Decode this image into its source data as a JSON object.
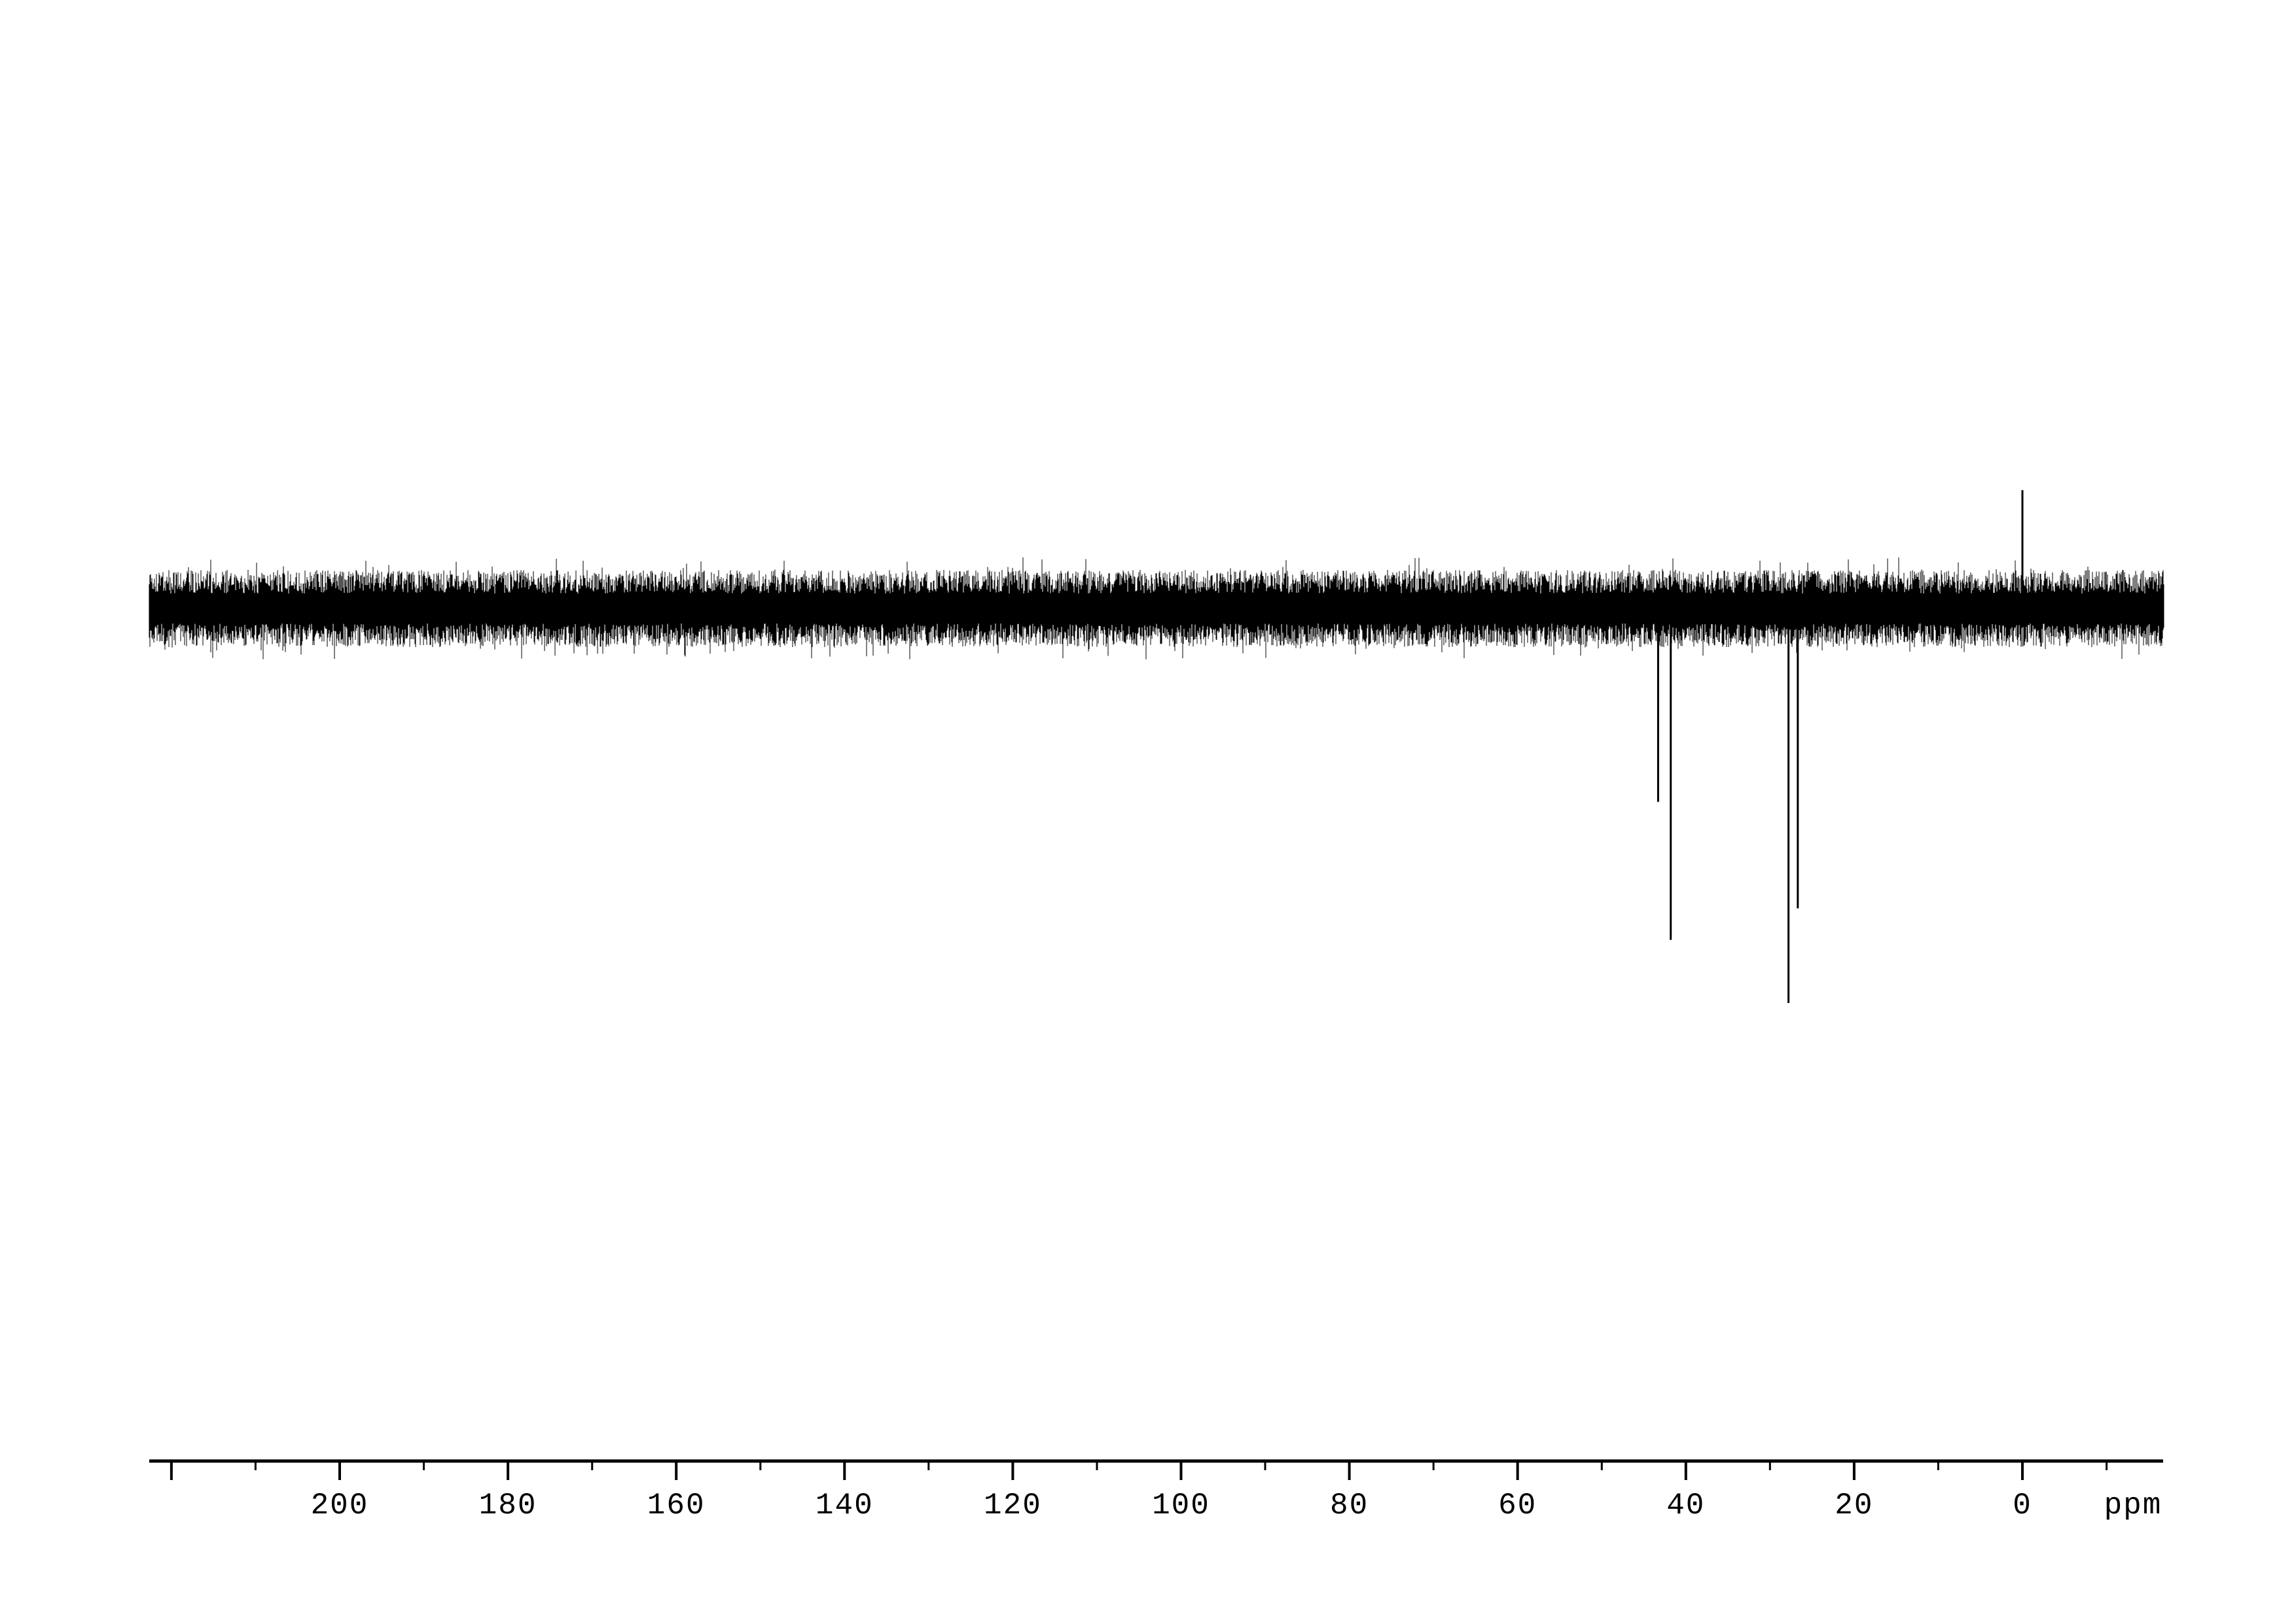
{
  "page": {
    "background_color": "#ffffff",
    "ink_color": "#000000"
  },
  "chart_data": {
    "type": "line",
    "subtype": "1D NMR spectrum trace (DEPT-style: negative peaks below baseline, positive reference spike)",
    "title": "",
    "xlabel": "ppm",
    "ylabel": "",
    "grid": false,
    "legend_position": "none",
    "x_axis": {
      "unit_label": "ppm",
      "values_decrease_to_the_right": true,
      "range_ppm_left_to_right": [
        222.6,
        -16.7
      ],
      "labeled_tick_values": [
        200,
        180,
        160,
        140,
        120,
        100,
        80,
        60,
        40,
        20,
        0
      ],
      "tick_labels": [
        "200",
        "180",
        "160",
        "140",
        "120",
        "100",
        "80",
        "60",
        "40",
        "20",
        "0"
      ],
      "unlabeled_long_tick_values": [
        220
      ],
      "short_tick_values": [
        210,
        190,
        170,
        150,
        130,
        110,
        90,
        70,
        50,
        30,
        10,
        -10
      ]
    },
    "y_axis": {
      "visible": false
    },
    "peaks": [
      {
        "ppm": 43.3,
        "rel_intensity": -0.49,
        "phase": "negative"
      },
      {
        "ppm": 41.8,
        "rel_intensity": -0.84,
        "phase": "negative"
      },
      {
        "ppm": 27.8,
        "rel_intensity": -1.0,
        "phase": "negative"
      },
      {
        "ppm": 26.7,
        "rel_intensity": -0.76,
        "phase": "negative"
      },
      {
        "ppm": 0.0,
        "rel_intensity": 0.3,
        "phase": "positive"
      }
    ],
    "baseline_noise": {
      "center_rel_intensity": 0.0,
      "solid_band_halfwidth_rel": 0.038,
      "max_spike_halfwidth_rel": 0.13
    }
  }
}
